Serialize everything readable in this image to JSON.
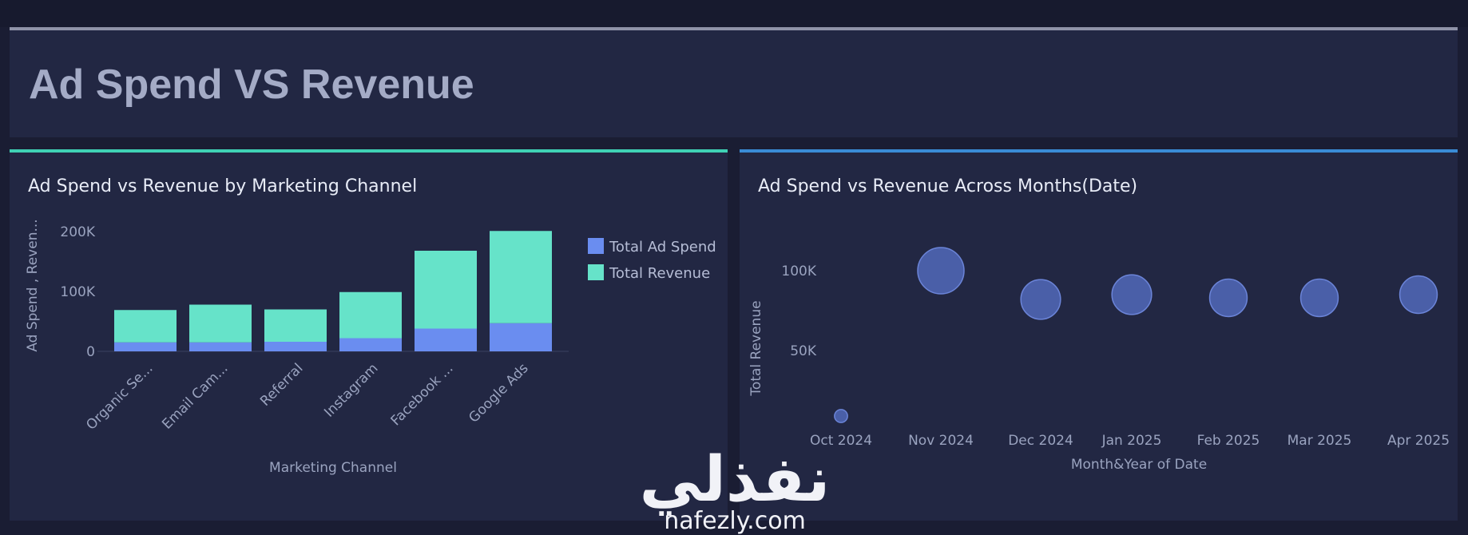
{
  "page": {
    "title": "Ad Spend VS Revenue"
  },
  "left_panel": {
    "title": "Ad Spend vs Revenue by Marketing Channel"
  },
  "right_panel": {
    "title": "Ad Spend vs Revenue Across Months(Date)"
  },
  "watermark": {
    "arabic": "نفذلي",
    "latin": "nafezly.com"
  },
  "colors": {
    "ad_spend": "#6a8df0",
    "revenue": "#66e3c9",
    "bubble": "#4a5fa8",
    "bubble_stroke": "#6b84d8"
  },
  "chart_data": [
    {
      "type": "bar",
      "stacked": true,
      "title": "Ad Spend vs Revenue by Marketing Channel",
      "xlabel": "Marketing Channel",
      "ylabel": "Ad Spend , Reven...",
      "categories": [
        "Organic Se...",
        "Email Cam...",
        "Referral",
        "Instagram",
        "Facebook ...",
        "Google Ads"
      ],
      "series": [
        {
          "name": "Total Ad Spend",
          "values": [
            15000,
            15000,
            16000,
            22000,
            38000,
            47000
          ]
        },
        {
          "name": "Total Revenue",
          "values": [
            54000,
            63000,
            54000,
            77000,
            130000,
            154000
          ]
        }
      ],
      "yticks": [
        0,
        100000,
        200000
      ],
      "ytick_labels": [
        "0",
        "100K",
        "200K"
      ],
      "ylim": [
        0,
        220000
      ],
      "legend_position": "top-right"
    },
    {
      "type": "scatter",
      "title": "Ad Spend vs Revenue Across Months(Date)",
      "xlabel": "Month&Year of Date",
      "ylabel": "Total Revenue",
      "categories": [
        "Oct 2024",
        "Nov 2024",
        "Dec 2024",
        "Jan 2025",
        "Feb 2025",
        "Mar 2025",
        "Apr 2025"
      ],
      "values": [
        9000,
        100000,
        82000,
        85000,
        83000,
        83000,
        85000
      ],
      "bubble_size": [
        3000,
        18000,
        15000,
        15000,
        14000,
        14000,
        14000
      ],
      "yticks": [
        50000,
        100000
      ],
      "ytick_labels": [
        "50K",
        "100K"
      ],
      "ylim": [
        0,
        125000
      ]
    }
  ]
}
